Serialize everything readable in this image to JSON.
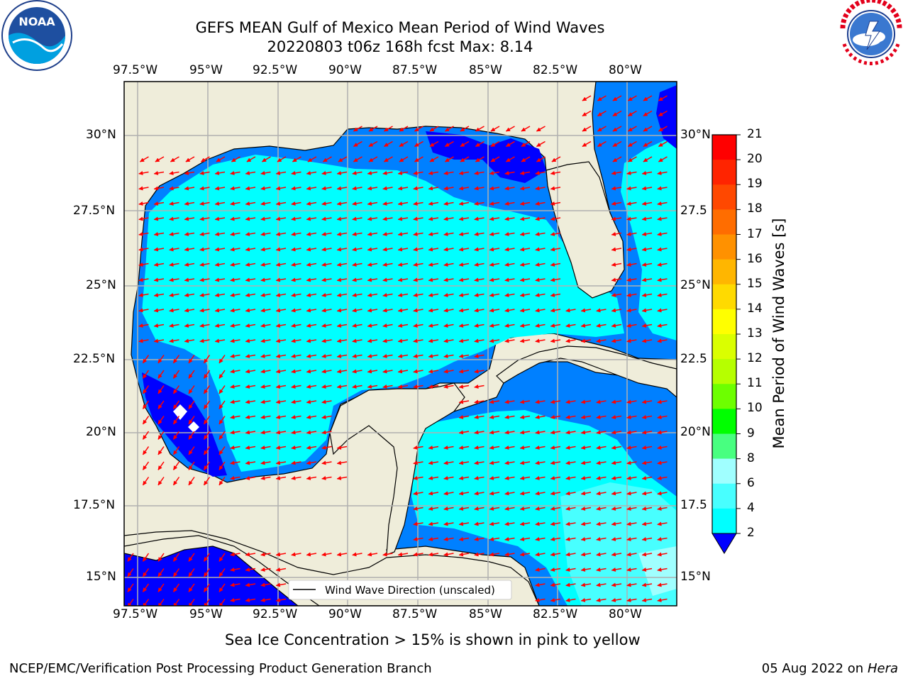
{
  "header": {
    "title_line1": "GEFS MEAN Gulf of Mexico Mean Period of Wind Waves",
    "title_line2": "20220803 t06z 168h fcst   Max: 8.14"
  },
  "logos": {
    "left": "NOAA",
    "left_ring_text": "NATIONAL OCEANIC AND ATMOSPHERIC ADMINISTRATION · U.S. DEPARTMENT OF COMMERCE",
    "right_ring_text": "NATIONAL WEATHER SERVICE"
  },
  "map": {
    "lon_labels": [
      "97.5°W",
      "95°W",
      "92.5°W",
      "90°W",
      "87.5°W",
      "85°W",
      "82.5°W",
      "80°W"
    ],
    "lat_labels_left": [
      "30°N",
      "27.5°N",
      "25°N",
      "22.5°N",
      "20°N",
      "17.5°N",
      "15°N"
    ],
    "lat_labels_right": [
      "30°N",
      "27.5",
      "25°N",
      "22.5",
      "20°N",
      "17.5",
      "15°N"
    ],
    "legend_label": "Wind Wave Direction (unscaled)",
    "colors": {
      "land": "#efedda",
      "ocean_cyan": "#00ffff",
      "ocean_blue": "#0080ff",
      "ocean_deep": "#0000ff",
      "arrow": "#ff0000",
      "grid": "#b0b0b0"
    }
  },
  "colorbar": {
    "label": "Mean Period of Wind Waves [s]",
    "ticks": [
      "21",
      "20",
      "19",
      "18",
      "17",
      "16",
      "15",
      "14",
      "13",
      "12",
      "11",
      "10",
      "9",
      "8",
      "6",
      "4",
      "2"
    ],
    "colors": [
      "#ff0000",
      "#ff2400",
      "#ff4800",
      "#ff6d00",
      "#ff9100",
      "#ffb600",
      "#ffda00",
      "#ffff00",
      "#daff00",
      "#b6ff00",
      "#6dff00",
      "#00ff00",
      "#48ff80",
      "#a0ffff",
      "#48ffff",
      "#00ffff",
      "#0080ff"
    ],
    "extend_color": "#0000ff"
  },
  "caption": "Sea Ice Concentration > 15% is shown in pink to yellow",
  "footer": {
    "left": "NCEP/EMC/Verification Post Processing Product Generation Branch",
    "right_date": "05 Aug 2022 on",
    "right_host": "Hera"
  }
}
